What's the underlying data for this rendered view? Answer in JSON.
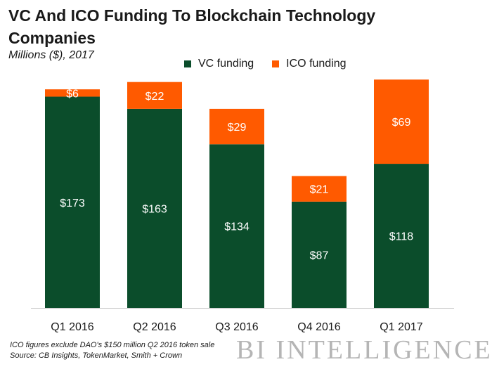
{
  "title": "VC And ICO Funding To Blockchain Technology Companies",
  "subtitle": "Millions ($), 2017",
  "footnote": {
    "line1": "ICO figures exclude DAO's $150 million Q2 2016 token sale",
    "line2": "Source: CB Insights, TokenMarket, Smith + Crown"
  },
  "brand": "BI INTELLIGENCE",
  "colors": {
    "vc": "#0b4d2b",
    "ico": "#ff5a00"
  },
  "chart_data": {
    "type": "bar",
    "stacked": true,
    "categories": [
      "Q1 2016",
      "Q2 2016",
      "Q3 2016",
      "Q4 2016",
      "Q1 2017"
    ],
    "series": [
      {
        "name": "VC funding",
        "values": [
          173,
          163,
          134,
          87,
          118
        ],
        "labels": [
          "$173",
          "$163",
          "$134",
          "$87",
          "$118"
        ]
      },
      {
        "name": "ICO funding",
        "values": [
          6,
          22,
          29,
          21,
          69
        ],
        "labels": [
          "$6",
          "$22",
          "$29",
          "$21",
          "$69"
        ]
      }
    ],
    "title": "VC And ICO Funding To Blockchain Technology Companies",
    "ylabel": "",
    "xlabel": "",
    "ylim": [
      0,
      190
    ],
    "grid": false,
    "legend_position": "top"
  }
}
